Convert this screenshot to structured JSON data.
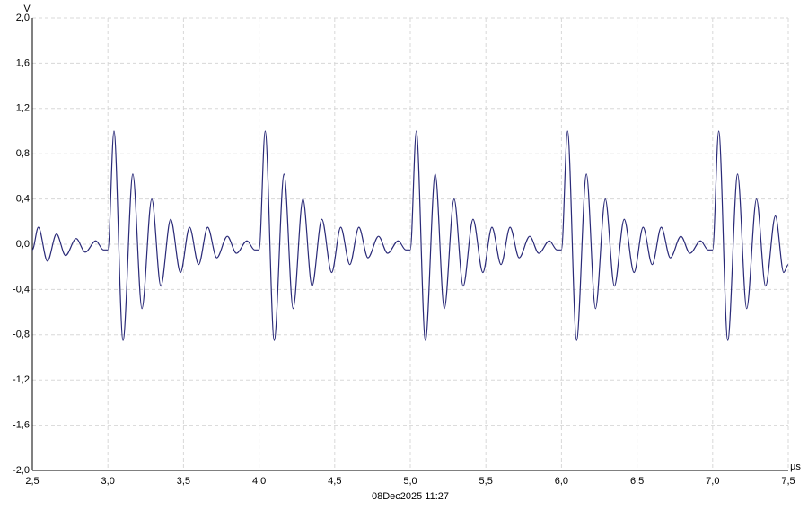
{
  "chart_data": {
    "type": "line",
    "y_unit": "V",
    "x_unit": "µs",
    "timestamp": "08Dec2025 11:27",
    "color": "#2a2a78",
    "grid": true,
    "xlim": [
      2.5,
      7.5
    ],
    "ylim": [
      -2.0,
      2.0
    ],
    "xticks": [
      {
        "value": 2.5,
        "label": "2,5"
      },
      {
        "value": 3.0,
        "label": "3,0"
      },
      {
        "value": 3.5,
        "label": "3,5"
      },
      {
        "value": 4.0,
        "label": "4,0"
      },
      {
        "value": 4.5,
        "label": "4,5"
      },
      {
        "value": 5.0,
        "label": "5,0"
      },
      {
        "value": 5.5,
        "label": "5,5"
      },
      {
        "value": 6.0,
        "label": "6,0"
      },
      {
        "value": 6.5,
        "label": "6,5"
      },
      {
        "value": 7.0,
        "label": "7,0"
      },
      {
        "value": 7.5,
        "label": "7,5"
      }
    ],
    "yticks": [
      {
        "value": 2.0,
        "label": "2,0"
      },
      {
        "value": 1.6,
        "label": "1,6"
      },
      {
        "value": 1.2,
        "label": "1,2"
      },
      {
        "value": 0.8,
        "label": "0,8"
      },
      {
        "value": 0.4,
        "label": "0,4"
      },
      {
        "value": 0.0,
        "label": "0,0"
      },
      {
        "value": -0.4,
        "label": "-0,4"
      },
      {
        "value": -0.8,
        "label": "-0,8"
      },
      {
        "value": -1.2,
        "label": "-1,2"
      },
      {
        "value": -1.6,
        "label": "-1,6"
      },
      {
        "value": -2.0,
        "label": "-2,0"
      }
    ],
    "x": [
      2.5,
      2.54,
      2.6,
      2.66,
      2.72,
      2.79,
      2.85,
      2.92,
      2.97,
      3.0,
      3.04,
      3.1,
      3.165,
      3.225,
      3.29,
      3.35,
      3.415,
      3.48,
      3.54,
      3.6,
      3.66,
      3.72,
      3.79,
      3.85,
      3.92,
      3.97,
      4.0,
      4.04,
      4.1,
      4.165,
      4.225,
      4.29,
      4.35,
      4.415,
      4.48,
      4.54,
      4.6,
      4.66,
      4.72,
      4.79,
      4.85,
      4.92,
      4.97,
      5.0,
      5.04,
      5.1,
      5.165,
      5.225,
      5.29,
      5.35,
      5.415,
      5.48,
      5.54,
      5.6,
      5.66,
      5.72,
      5.79,
      5.85,
      5.92,
      5.97,
      6.0,
      6.04,
      6.1,
      6.165,
      6.225,
      6.29,
      6.35,
      6.415,
      6.48,
      6.54,
      6.6,
      6.66,
      6.72,
      6.79,
      6.85,
      6.92,
      6.97,
      7.0,
      7.04,
      7.1,
      7.165,
      7.225,
      7.29,
      7.35,
      7.415,
      7.47,
      7.5
    ],
    "values": [
      -0.05,
      0.15,
      -0.15,
      0.09,
      -0.1,
      0.05,
      -0.07,
      0.03,
      -0.05,
      -0.05,
      1.0,
      -0.85,
      0.62,
      -0.57,
      0.4,
      -0.37,
      0.22,
      -0.25,
      0.15,
      -0.18,
      0.15,
      -0.12,
      0.07,
      -0.08,
      0.03,
      -0.05,
      -0.05,
      1.0,
      -0.85,
      0.62,
      -0.57,
      0.4,
      -0.37,
      0.22,
      -0.25,
      0.15,
      -0.18,
      0.15,
      -0.12,
      0.07,
      -0.08,
      0.03,
      -0.05,
      -0.05,
      1.0,
      -0.85,
      0.62,
      -0.57,
      0.4,
      -0.37,
      0.22,
      -0.25,
      0.15,
      -0.18,
      0.15,
      -0.12,
      0.07,
      -0.08,
      0.03,
      -0.05,
      -0.05,
      1.0,
      -0.85,
      0.62,
      -0.57,
      0.4,
      -0.37,
      0.22,
      -0.25,
      0.15,
      -0.18,
      0.15,
      -0.12,
      0.07,
      -0.08,
      0.03,
      -0.05,
      -0.05,
      1.0,
      -0.85,
      0.62,
      -0.57,
      0.4,
      -0.37,
      0.25,
      -0.25,
      -0.18
    ]
  }
}
